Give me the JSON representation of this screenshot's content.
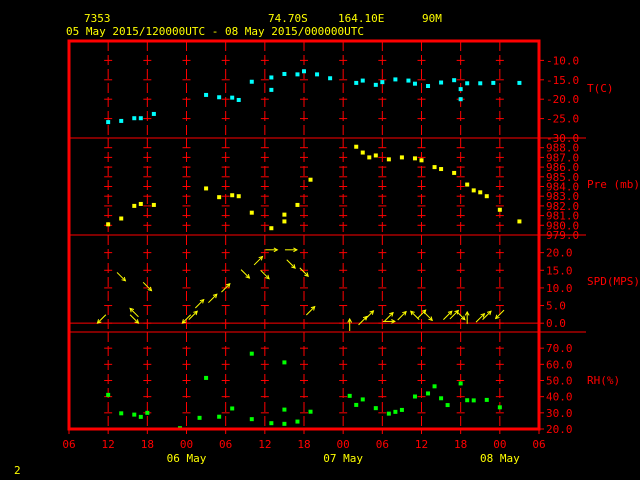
{
  "header": {
    "station_id": "7353",
    "latitude": "74.70S",
    "longitude": "164.10E",
    "elevation": "90M",
    "period": "05 May 2015/120000UTC - 08 May 2015/000000UTC"
  },
  "page_number": "2",
  "colors": {
    "frame": "#ff0000",
    "header_text": "#ffff00",
    "temperature": "#00ffff",
    "pressure": "#ffff00",
    "wind": "#ffff00",
    "humidity": "#00ff00",
    "background": "#000000"
  },
  "chart_data": {
    "type": "scatter",
    "x_unit": "hours since 05 May 2015 12 UTC",
    "x_tick_labels": [
      "06",
      "12",
      "18",
      "00",
      "06",
      "12",
      "18",
      "00",
      "06",
      "12",
      "18",
      "00",
      "06"
    ],
    "day_labels": [
      "06 May",
      "07 May",
      "08 May"
    ],
    "panels": [
      {
        "name": "temperature",
        "label": "T(C)",
        "ylim": [
          -30,
          -5
        ],
        "y_tick_labels": [
          "-10.0",
          "-15.0",
          "-20.0",
          "-25.0",
          "-30.0"
        ],
        "points": [
          [
            0,
            -25.9
          ],
          [
            2,
            -25.6
          ],
          [
            4,
            -24.9
          ],
          [
            5,
            -24.9
          ],
          [
            7,
            -23.8
          ],
          [
            15,
            -18.9
          ],
          [
            17,
            -19.5
          ],
          [
            19,
            -19.6
          ],
          [
            20,
            -20.2
          ],
          [
            22,
            -15.5
          ],
          [
            25,
            -17.6
          ],
          [
            25,
            -14.4
          ],
          [
            27,
            -13.5
          ],
          [
            29,
            -13.6
          ],
          [
            30,
            -12.8
          ],
          [
            32,
            -13.6
          ],
          [
            34,
            -14.6
          ],
          [
            38,
            -15.8
          ],
          [
            39,
            -15.2
          ],
          [
            41,
            -16.3
          ],
          [
            42,
            -15.6
          ],
          [
            44,
            -14.9
          ],
          [
            46,
            -15.2
          ],
          [
            47,
            -16.0
          ],
          [
            49,
            -16.6
          ],
          [
            51,
            -15.7
          ],
          [
            53,
            -15.1
          ],
          [
            54,
            -17.4
          ],
          [
            54,
            -20.0
          ],
          [
            55,
            -15.9
          ],
          [
            57,
            -15.9
          ],
          [
            59,
            -15.8
          ],
          [
            63,
            -15.8
          ]
        ]
      },
      {
        "name": "pressure",
        "label": "Pre (mb)",
        "ylim": [
          979,
          989
        ],
        "y_tick_labels": [
          "988.0",
          "987.0",
          "986.0",
          "985.0",
          "984.0",
          "983.0",
          "982.0",
          "981.0",
          "980.0",
          "979.0"
        ],
        "points": [
          [
            0,
            980.1
          ],
          [
            2,
            980.7
          ],
          [
            4,
            982.0
          ],
          [
            5,
            982.2
          ],
          [
            7,
            982.1
          ],
          [
            15,
            983.8
          ],
          [
            17,
            982.9
          ],
          [
            19,
            983.1
          ],
          [
            20,
            983.0
          ],
          [
            22,
            981.3
          ],
          [
            25,
            979.7
          ],
          [
            27,
            981.1
          ],
          [
            27,
            980.4
          ],
          [
            29,
            982.1
          ],
          [
            31,
            984.7
          ],
          [
            38,
            988.1
          ],
          [
            39,
            987.5
          ],
          [
            40,
            987.0
          ],
          [
            41,
            987.2
          ],
          [
            43,
            986.8
          ],
          [
            45,
            987.0
          ],
          [
            47,
            986.9
          ],
          [
            48,
            986.7
          ],
          [
            50,
            986.0
          ],
          [
            51,
            985.8
          ],
          [
            53,
            985.4
          ],
          [
            55,
            984.2
          ],
          [
            56,
            983.6
          ],
          [
            57,
            983.4
          ],
          [
            58,
            983.0
          ],
          [
            60,
            981.6
          ],
          [
            63,
            980.4
          ]
        ]
      },
      {
        "name": "wind",
        "label": "SPD(MPS)",
        "ylim": [
          -2.5,
          25
        ],
        "y_tick_labels": [
          "20.0",
          "15.0",
          "10.0",
          "5.0",
          "0.0"
        ],
        "points": [
          [
            -1,
            1.2
          ],
          [
            2,
            13.2
          ],
          [
            4,
            1.2
          ],
          [
            4,
            3.0
          ],
          [
            6,
            10.4
          ],
          [
            12,
            1.2
          ],
          [
            13,
            2.2
          ],
          [
            14,
            5.5
          ],
          [
            16,
            7.0
          ],
          [
            18,
            10.0
          ],
          [
            21,
            14.0
          ],
          [
            23,
            17.7
          ],
          [
            24,
            13.8
          ],
          [
            25,
            20.8
          ],
          [
            28,
            16.8
          ],
          [
            28,
            20.8
          ],
          [
            30,
            14.5
          ],
          [
            31,
            3.5
          ],
          [
            37,
            -0.5
          ],
          [
            39,
            0.7
          ],
          [
            40,
            2.3
          ],
          [
            43,
            1.8
          ],
          [
            43,
            0.5
          ],
          [
            45,
            2.1
          ],
          [
            47,
            2.2
          ],
          [
            48,
            2.5
          ],
          [
            49,
            2.0
          ],
          [
            52,
            2.2
          ],
          [
            53,
            2.4
          ],
          [
            54,
            2.2
          ],
          [
            55,
            1.5
          ],
          [
            57,
            1.5
          ],
          [
            58,
            2.2
          ],
          [
            60,
            2.5
          ]
        ]
      },
      {
        "name": "humidity",
        "label": "RH(%)",
        "ylim": [
          20,
          80
        ],
        "y_tick_labels": [
          "70.0",
          "60.0",
          "50.0",
          "40.0",
          "30.0",
          "20.0"
        ],
        "points": [
          [
            0,
            41.1
          ],
          [
            2,
            29.7
          ],
          [
            4,
            28.9
          ],
          [
            5,
            27.5
          ],
          [
            6,
            30.0
          ],
          [
            11,
            20.5
          ],
          [
            14,
            26.9
          ],
          [
            15,
            51.6
          ],
          [
            17,
            27.6
          ],
          [
            19,
            32.7
          ],
          [
            22,
            26.1
          ],
          [
            22,
            66.6
          ],
          [
            25,
            23.6
          ],
          [
            27,
            23.2
          ],
          [
            27,
            32.0
          ],
          [
            27,
            61.2
          ],
          [
            29,
            24.6
          ],
          [
            31,
            30.7
          ],
          [
            37,
            40.5
          ],
          [
            38,
            34.9
          ],
          [
            39,
            38.3
          ],
          [
            41,
            32.9
          ],
          [
            43,
            29.5
          ],
          [
            44,
            30.6
          ],
          [
            45,
            31.8
          ],
          [
            47,
            40.1
          ],
          [
            49,
            42.0
          ],
          [
            50,
            46.4
          ],
          [
            51,
            39.0
          ],
          [
            52,
            34.8
          ],
          [
            54,
            48.2
          ],
          [
            55,
            37.8
          ],
          [
            56,
            37.7
          ],
          [
            58,
            38.0
          ],
          [
            60,
            33.4
          ]
        ]
      }
    ],
    "wind_arrows": [
      {
        "h": -1,
        "spd": 1.2,
        "dir": "sw"
      },
      {
        "h": 2,
        "spd": 13.2,
        "dir": "se"
      },
      {
        "h": 4,
        "spd": 3.0,
        "dir": "nw"
      },
      {
        "h": 4,
        "spd": 1.2,
        "dir": "se"
      },
      {
        "h": 6,
        "spd": 10.4,
        "dir": "se"
      },
      {
        "h": 12,
        "spd": 1.2,
        "dir": "sw"
      },
      {
        "h": 13,
        "spd": 2.2,
        "dir": "ne"
      },
      {
        "h": 14,
        "spd": 5.5,
        "dir": "ne"
      },
      {
        "h": 16,
        "spd": 7.0,
        "dir": "ne"
      },
      {
        "h": 18,
        "spd": 10.0,
        "dir": "ne"
      },
      {
        "h": 21,
        "spd": 14.0,
        "dir": "se"
      },
      {
        "h": 23,
        "spd": 17.7,
        "dir": "ne"
      },
      {
        "h": 24,
        "spd": 13.8,
        "dir": "se"
      },
      {
        "h": 25,
        "spd": 20.8,
        "dir": "e"
      },
      {
        "h": 28,
        "spd": 16.8,
        "dir": "se"
      },
      {
        "h": 28,
        "spd": 20.8,
        "dir": "e"
      },
      {
        "h": 30,
        "spd": 14.5,
        "dir": "se"
      },
      {
        "h": 31,
        "spd": 3.5,
        "dir": "ne"
      },
      {
        "h": 37,
        "spd": -0.5,
        "dir": "n"
      },
      {
        "h": 39,
        "spd": 0.7,
        "dir": "ne"
      },
      {
        "h": 40,
        "spd": 2.3,
        "dir": "ne"
      },
      {
        "h": 43,
        "spd": 1.8,
        "dir": "ne"
      },
      {
        "h": 43,
        "spd": 0.5,
        "dir": "e"
      },
      {
        "h": 45,
        "spd": 2.1,
        "dir": "ne"
      },
      {
        "h": 47,
        "spd": 2.2,
        "dir": "nw"
      },
      {
        "h": 48,
        "spd": 2.5,
        "dir": "ne"
      },
      {
        "h": 49,
        "spd": 2.0,
        "dir": "se"
      },
      {
        "h": 52,
        "spd": 2.2,
        "dir": "ne"
      },
      {
        "h": 53,
        "spd": 2.4,
        "dir": "ne"
      },
      {
        "h": 54,
        "spd": 2.2,
        "dir": "se"
      },
      {
        "h": 55,
        "spd": 1.5,
        "dir": "n"
      },
      {
        "h": 57,
        "spd": 1.5,
        "dir": "ne"
      },
      {
        "h": 58,
        "spd": 2.2,
        "dir": "ne"
      },
      {
        "h": 60,
        "spd": 2.5,
        "dir": "sw"
      }
    ]
  }
}
